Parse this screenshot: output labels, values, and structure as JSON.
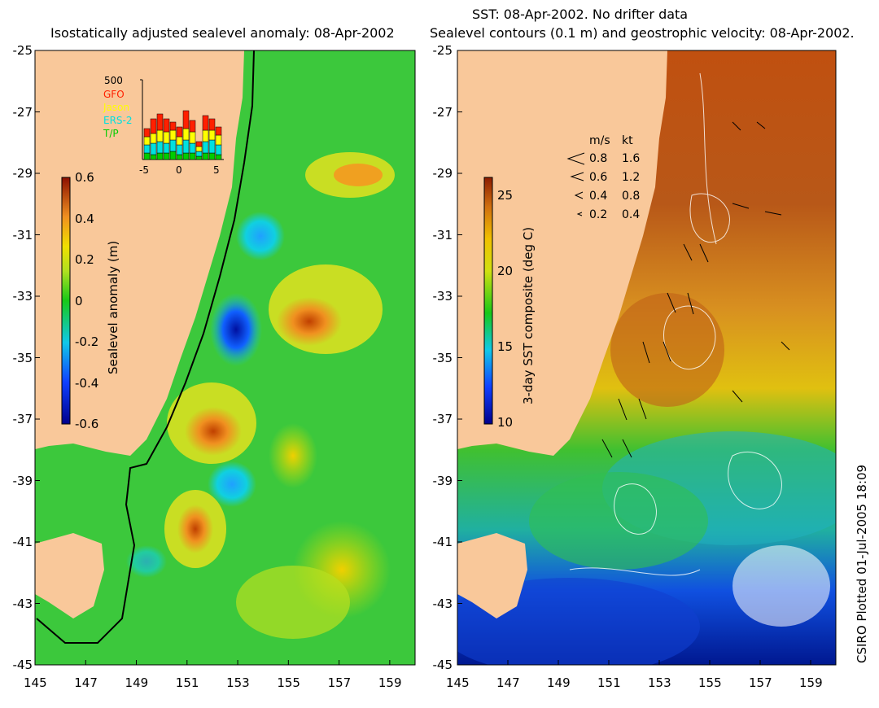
{
  "left_panel": {
    "title": "Isostatically adjusted sealevel anomaly: 08-Apr-2002",
    "colorbar": {
      "label": "Sealevel anomaly (m)",
      "ticks": [
        "0.6",
        "0.4",
        "0.2",
        "0",
        "-0.2",
        "-0.4",
        "-0.6"
      ]
    },
    "histogram": {
      "ymax_label": "500",
      "legend": [
        {
          "name": "GFO",
          "color": "#ff2000"
        },
        {
          "name": "Jason",
          "color": "#ffff00"
        },
        {
          "name": "ERS-2",
          "color": "#00e0e0"
        },
        {
          "name": "T/P",
          "color": "#00cc00"
        }
      ],
      "x_ticks": [
        "-5",
        "0",
        "5"
      ]
    }
  },
  "right_panel": {
    "title_line1": "SST: 08-Apr-2002. No drifter data",
    "title_line2": "Sealevel contours (0.1 m) and geostrophic velocity: 08-Apr-2002.",
    "colorbar": {
      "label": "3-day SST composite (deg C)",
      "ticks": [
        "25",
        "20",
        "15",
        "10"
      ]
    },
    "velocity_scale": {
      "header_ms": "m/s",
      "header_kt": "kt",
      "rows": [
        {
          "ms": "0.8",
          "kt": "1.6"
        },
        {
          "ms": "0.6",
          "kt": "1.2"
        },
        {
          "ms": "0.4",
          "kt": "0.8"
        },
        {
          "ms": "0.2",
          "kt": "0.4"
        }
      ]
    }
  },
  "axes": {
    "x_ticks": [
      "145",
      "147",
      "149",
      "151",
      "153",
      "155",
      "157",
      "159"
    ],
    "y_ticks": [
      "-25",
      "-27",
      "-29",
      "-31",
      "-33",
      "-35",
      "-37",
      "-39",
      "-41",
      "-43",
      "-45"
    ]
  },
  "credit": "CSIRO Plotted 01-Jul-2005 18:09",
  "colors": {
    "land": "#f9c89a",
    "sea_green": "#3cc83c"
  }
}
